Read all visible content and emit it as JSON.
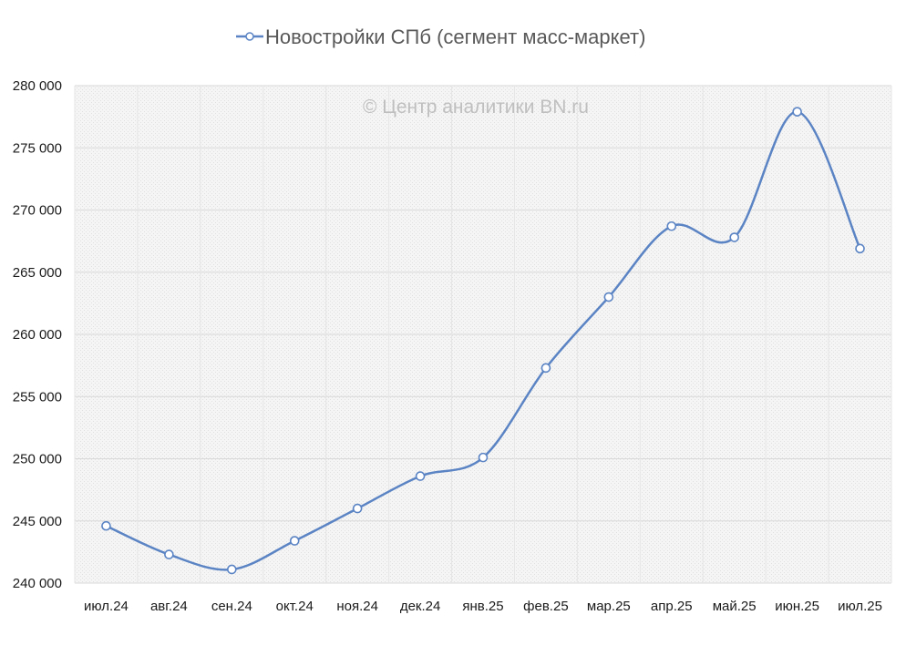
{
  "chart_data": {
    "type": "line",
    "title": "",
    "xlabel": "",
    "ylabel": "",
    "watermark": "© Центр аналитики BN.ru",
    "legend_position": "top",
    "grid": true,
    "smooth": true,
    "line_color": "#5b84c4",
    "categories": [
      "июл.24",
      "авг.24",
      "сен.24",
      "окт.24",
      "ноя.24",
      "дек.24",
      "янв.25",
      "фев.25",
      "мар.25",
      "апр.25",
      "май.25",
      "июн.25",
      "июл.25"
    ],
    "ylim": [
      240000,
      280000
    ],
    "yticks": [
      {
        "value": 240000,
        "label": "240 000"
      },
      {
        "value": 245000,
        "label": "245 000"
      },
      {
        "value": 250000,
        "label": "250 000"
      },
      {
        "value": 255000,
        "label": "255 000"
      },
      {
        "value": 260000,
        "label": "260 000"
      },
      {
        "value": 265000,
        "label": "265 000"
      },
      {
        "value": 270000,
        "label": "270 000"
      },
      {
        "value": 275000,
        "label": "275 000"
      },
      {
        "value": 280000,
        "label": "280 000"
      }
    ],
    "series": [
      {
        "name": "Новостройки СПб (сегмент масс-маркет)",
        "values": [
          244600,
          242300,
          241100,
          243400,
          246000,
          248600,
          250100,
          257300,
          263000,
          268700,
          267800,
          277900,
          266900
        ]
      }
    ]
  }
}
